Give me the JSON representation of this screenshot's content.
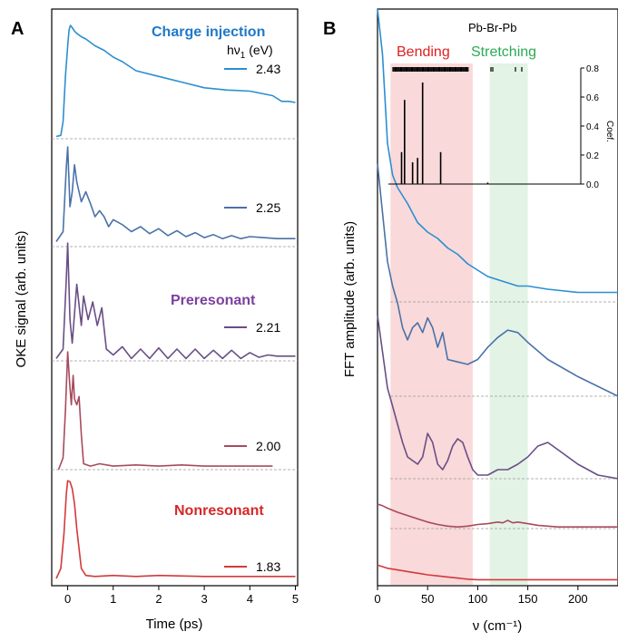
{
  "chart_data": [
    {
      "panel": "A",
      "type": "line",
      "xlabel": "Time (ps)",
      "ylabel": "OKE signal (arb. units)",
      "xlim": [
        -0.35,
        5.05
      ],
      "xticks": [
        0,
        1,
        2,
        3,
        4,
        5
      ],
      "legend_header": "hν₁ (eV)",
      "annotations": [
        "Charge injection",
        "Preresonant",
        "Nonresonant"
      ],
      "annotation_colors": [
        "#1f78c8",
        "#7b3fa0",
        "#d62728"
      ],
      "series": [
        {
          "name": "2.43",
          "color": "#2b8fd1",
          "baseline": "dashed",
          "x": [
            -0.25,
            -0.15,
            -0.1,
            -0.05,
            0,
            0.03,
            0.06,
            0.1,
            0.15,
            0.2,
            0.3,
            0.4,
            0.6,
            0.8,
            1.0,
            1.2,
            1.5,
            2.0,
            2.5,
            3.0,
            3.5,
            4.0,
            4.5,
            4.7,
            4.85,
            5.0
          ],
          "y": [
            0.02,
            0.03,
            0.15,
            0.55,
            0.82,
            0.96,
            1.0,
            0.98,
            0.95,
            0.93,
            0.9,
            0.88,
            0.82,
            0.78,
            0.72,
            0.68,
            0.6,
            0.55,
            0.5,
            0.45,
            0.43,
            0.42,
            0.38,
            0.33,
            0.33,
            0.32
          ]
        },
        {
          "name": "2.25",
          "color": "#4a72a8",
          "baseline": "dashed",
          "x": [
            -0.25,
            -0.1,
            -0.03,
            0,
            0.05,
            0.1,
            0.15,
            0.2,
            0.3,
            0.4,
            0.5,
            0.6,
            0.7,
            0.8,
            0.9,
            1.0,
            1.2,
            1.4,
            1.6,
            1.8,
            2.0,
            2.2,
            2.4,
            2.6,
            2.8,
            3.0,
            3.2,
            3.4,
            3.6,
            3.8,
            4.0,
            4.3,
            4.6,
            5.0
          ],
          "y": [
            0.05,
            0.15,
            0.8,
            1.0,
            0.4,
            0.55,
            0.82,
            0.65,
            0.45,
            0.55,
            0.43,
            0.3,
            0.36,
            0.3,
            0.2,
            0.27,
            0.22,
            0.15,
            0.2,
            0.13,
            0.18,
            0.11,
            0.16,
            0.1,
            0.14,
            0.09,
            0.12,
            0.08,
            0.11,
            0.08,
            0.1,
            0.09,
            0.08,
            0.08
          ]
        },
        {
          "name": "2.21",
          "color": "#6a4e86",
          "baseline": "dashed",
          "x": [
            -0.25,
            -0.1,
            -0.03,
            0,
            0.05,
            0.1,
            0.2,
            0.3,
            0.35,
            0.45,
            0.55,
            0.65,
            0.75,
            0.85,
            1.0,
            1.2,
            1.4,
            1.6,
            1.8,
            2.0,
            2.2,
            2.4,
            2.6,
            2.8,
            3.0,
            3.2,
            3.4,
            3.6,
            3.8,
            4.0,
            4.2,
            4.4,
            4.6,
            5.0
          ],
          "y": [
            0.02,
            0.1,
            0.7,
            1.0,
            0.35,
            0.15,
            0.65,
            0.3,
            0.55,
            0.35,
            0.5,
            0.3,
            0.45,
            0.1,
            0.05,
            0.12,
            0.02,
            0.1,
            0.02,
            0.11,
            0.02,
            0.1,
            0.02,
            0.1,
            0.02,
            0.09,
            0.02,
            0.09,
            0.02,
            0.07,
            0.03,
            0.05,
            0.04,
            0.04
          ]
        },
        {
          "name": "2.00",
          "color": "#a84a5c",
          "baseline": "dashed",
          "x": [
            -0.2,
            -0.1,
            -0.05,
            0,
            0.04,
            0.08,
            0.12,
            0.15,
            0.2,
            0.25,
            0.3,
            0.35,
            0.5,
            0.7,
            1.0,
            1.5,
            2.0,
            2.5,
            3.0,
            3.5,
            4.0,
            4.5
          ],
          "y": [
            0.0,
            0.1,
            0.5,
            1.0,
            0.75,
            0.55,
            0.8,
            0.6,
            0.55,
            0.62,
            0.3,
            0.05,
            0.03,
            0.05,
            0.03,
            0.04,
            0.03,
            0.04,
            0.03,
            0.03,
            0.03,
            0.03
          ]
        },
        {
          "name": "1.83",
          "color": "#d23a3a",
          "baseline": "none",
          "x": [
            -0.25,
            -0.15,
            -0.08,
            -0.03,
            0,
            0.05,
            0.1,
            0.15,
            0.2,
            0.25,
            0.3,
            0.4,
            0.6,
            1.0,
            1.5,
            2.0,
            3.0,
            4.0,
            5.0
          ],
          "y": [
            0.0,
            0.1,
            0.45,
            0.85,
            0.98,
            0.97,
            0.9,
            0.75,
            0.5,
            0.3,
            0.1,
            0.03,
            0.02,
            0.03,
            0.02,
            0.03,
            0.02,
            0.02,
            0.02
          ]
        }
      ]
    },
    {
      "panel": "B",
      "type": "line",
      "xlabel": "ν (cm⁻¹)",
      "ylabel": "FFT amplitude (arb. units)",
      "xlim": [
        0,
        240
      ],
      "xticks": [
        0,
        50,
        100,
        150,
        200
      ],
      "regions": [
        {
          "label": "Bending",
          "range": [
            13,
            95
          ],
          "color": "#f7cccc",
          "label_color": "#e02020"
        },
        {
          "label": "Stretching",
          "range": [
            112,
            150
          ],
          "color": "#d9efdd",
          "label_color": "#2aaa55"
        }
      ],
      "series": [
        {
          "name": "2.43",
          "color": "#2b8fd1",
          "x": [
            0,
            5,
            10,
            15,
            20,
            30,
            40,
            50,
            60,
            70,
            80,
            90,
            100,
            110,
            120,
            130,
            140,
            150,
            170,
            200,
            240
          ],
          "y": [
            1.0,
            0.78,
            0.5,
            0.4,
            0.36,
            0.31,
            0.25,
            0.22,
            0.2,
            0.17,
            0.15,
            0.12,
            0.1,
            0.08,
            0.07,
            0.06,
            0.05,
            0.05,
            0.04,
            0.03,
            0.03
          ]
        },
        {
          "name": "2.25",
          "color": "#4a72a8",
          "x": [
            0,
            5,
            10,
            15,
            20,
            25,
            30,
            35,
            40,
            45,
            50,
            55,
            60,
            65,
            70,
            80,
            90,
            100,
            110,
            120,
            130,
            140,
            150,
            170,
            200,
            240
          ],
          "y": [
            0.95,
            0.75,
            0.55,
            0.45,
            0.38,
            0.28,
            0.23,
            0.28,
            0.3,
            0.26,
            0.32,
            0.28,
            0.2,
            0.26,
            0.15,
            0.14,
            0.13,
            0.15,
            0.2,
            0.24,
            0.27,
            0.26,
            0.22,
            0.15,
            0.08,
            0.0
          ]
        },
        {
          "name": "2.21",
          "color": "#6a4e86",
          "x": [
            0,
            5,
            10,
            15,
            20,
            25,
            30,
            40,
            45,
            50,
            55,
            60,
            65,
            70,
            75,
            80,
            85,
            90,
            95,
            100,
            110,
            120,
            130,
            140,
            150,
            160,
            170,
            180,
            200,
            220,
            240
          ],
          "y": [
            0.9,
            0.7,
            0.5,
            0.4,
            0.3,
            0.2,
            0.12,
            0.08,
            0.12,
            0.25,
            0.2,
            0.08,
            0.05,
            0.1,
            0.18,
            0.22,
            0.2,
            0.12,
            0.05,
            0.02,
            0.02,
            0.05,
            0.05,
            0.08,
            0.12,
            0.18,
            0.2,
            0.16,
            0.08,
            0.02,
            0.0
          ]
        },
        {
          "name": "2.00",
          "color": "#a84a5c",
          "x": [
            0,
            5,
            10,
            20,
            30,
            40,
            50,
            60,
            70,
            80,
            90,
            100,
            110,
            120,
            125,
            130,
            135,
            140,
            150,
            160,
            170,
            180,
            200,
            220,
            240
          ],
          "y": [
            0.3,
            0.28,
            0.25,
            0.2,
            0.16,
            0.12,
            0.08,
            0.05,
            0.03,
            0.02,
            0.03,
            0.05,
            0.06,
            0.08,
            0.07,
            0.1,
            0.07,
            0.08,
            0.06,
            0.04,
            0.03,
            0.02,
            0.02,
            0.02,
            0.02
          ]
        },
        {
          "name": "1.83",
          "color": "#d23a3a",
          "x": [
            0,
            5,
            10,
            20,
            30,
            40,
            50,
            60,
            70,
            80,
            90,
            100,
            120,
            150,
            200,
            240
          ],
          "y": [
            0.28,
            0.25,
            0.22,
            0.19,
            0.16,
            0.13,
            0.1,
            0.08,
            0.06,
            0.04,
            0.02,
            0.01,
            0.01,
            0.01,
            0.01,
            0.01
          ]
        }
      ],
      "inset": {
        "title": "Pb-Br-Pb",
        "ylabel": "Coef.",
        "ylim": [
          0,
          0.8
        ],
        "yticks": [
          0.0,
          0.2,
          0.4,
          0.6,
          0.8
        ],
        "bars": [
          [
            24,
            0.22
          ],
          [
            27,
            0.58
          ],
          [
            35,
            0.15
          ],
          [
            40,
            0.18
          ],
          [
            45,
            0.7
          ],
          [
            63,
            0.22
          ],
          [
            110,
            0.01
          ]
        ]
      }
    }
  ],
  "panel_labels": {
    "a": "A",
    "b": "B"
  },
  "legend": {
    "header": "hν",
    "header_sub": "1",
    "header_unit": " (eV)"
  }
}
